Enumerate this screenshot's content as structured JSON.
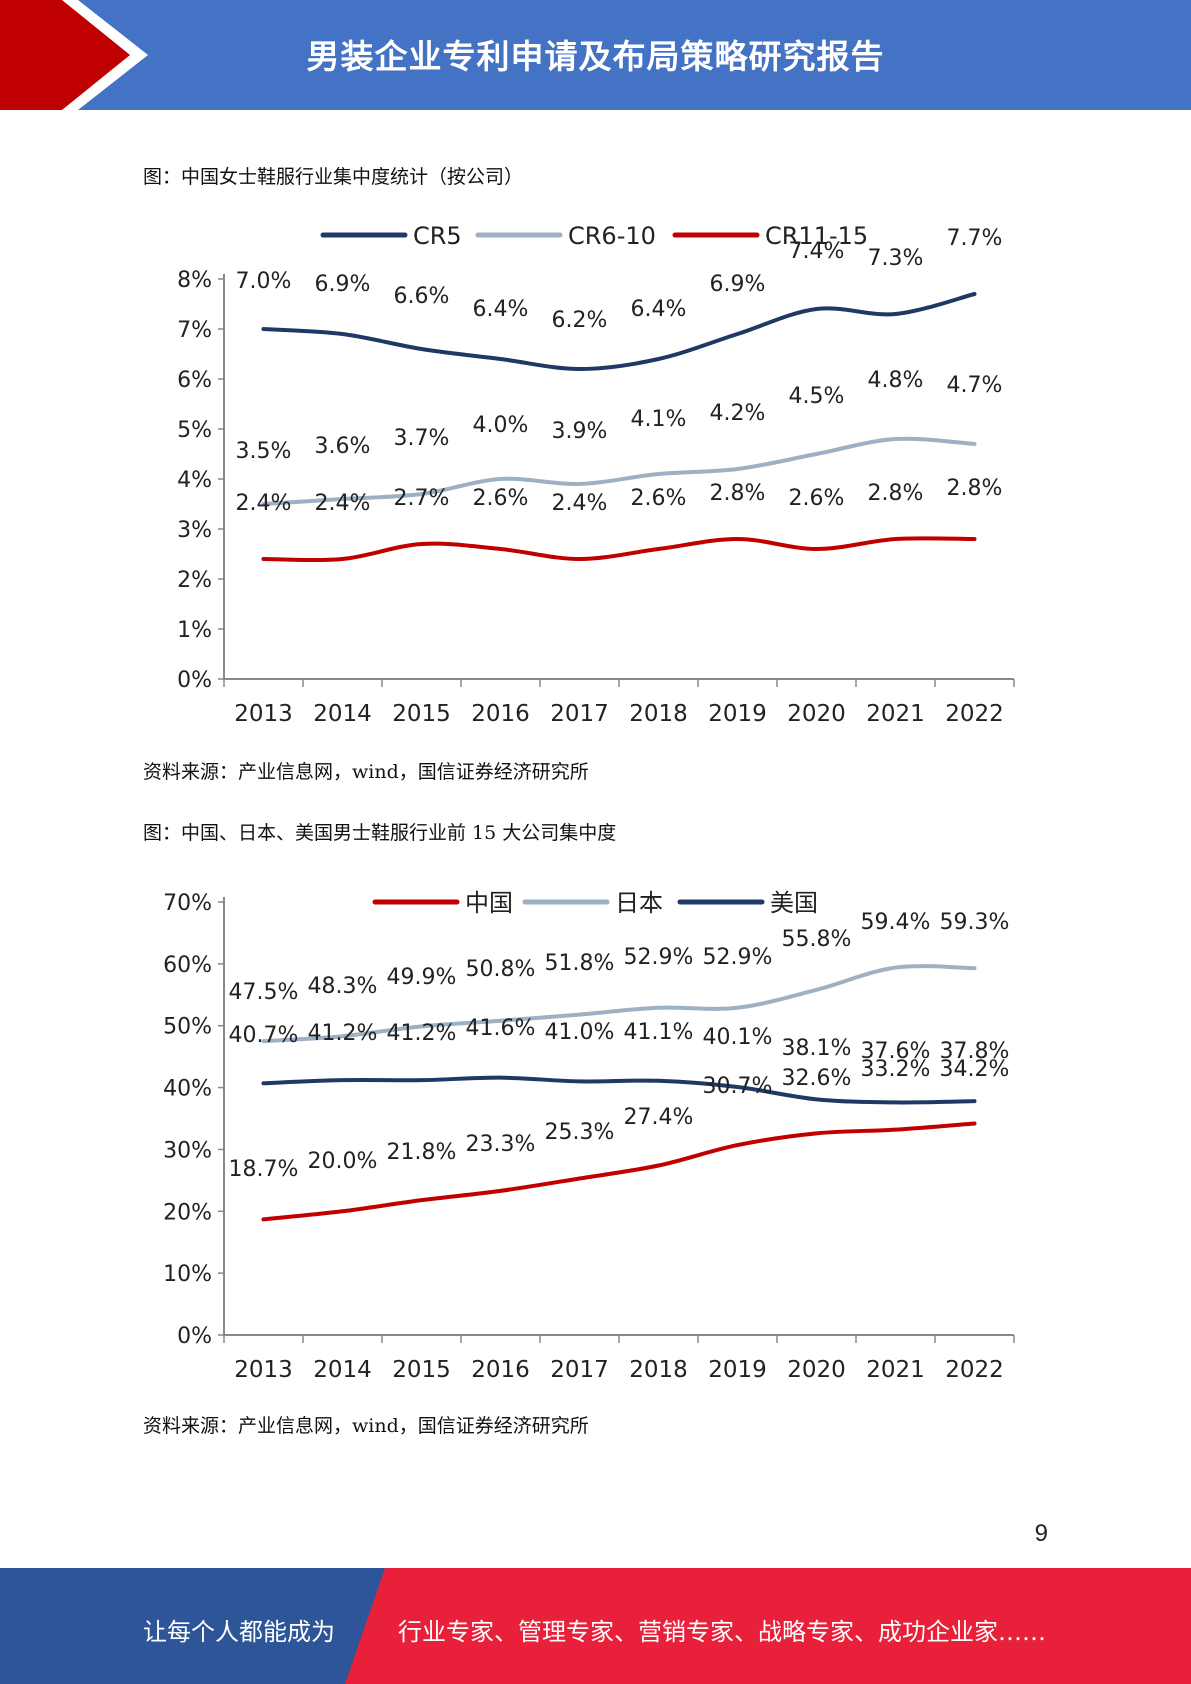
{
  "header": {
    "title": "男装企业专利申请及布局策略研究报告"
  },
  "figure1": {
    "caption": "图：中国女士鞋服行业集中度统计（按公司）",
    "source": "资料来源：产业信息网，wind，国信证券经济研究所"
  },
  "figure2": {
    "caption": "图：中国、日本、美国男士鞋服行业前 15 大公司集中度",
    "source": "资料来源：产业信息网，wind，国信证券经济研究所"
  },
  "chart_data": [
    {
      "type": "line",
      "x": [
        "2013",
        "2014",
        "2015",
        "2016",
        "2017",
        "2018",
        "2019",
        "2020",
        "2021",
        "2022"
      ],
      "ylim": [
        0,
        8
      ],
      "yticks": [
        "0%",
        "1%",
        "2%",
        "3%",
        "4%",
        "5%",
        "6%",
        "7%",
        "8%"
      ],
      "legend_position": "top",
      "grid": false,
      "series": [
        {
          "name": "CR5",
          "color": "#1f3864",
          "values": [
            7.0,
            6.9,
            6.6,
            6.4,
            6.2,
            6.4,
            6.9,
            7.4,
            7.3,
            7.7
          ],
          "labels": [
            "7.0%",
            "6.9%",
            "6.6%",
            "6.4%",
            "6.2%",
            "6.4%",
            "6.9%",
            "7.4%",
            "7.3%",
            "7.7%"
          ]
        },
        {
          "name": "CR6-10",
          "color": "#9eb0c4",
          "values": [
            3.5,
            3.6,
            3.7,
            4.0,
            3.9,
            4.1,
            4.2,
            4.5,
            4.8,
            4.7
          ],
          "labels": [
            "3.5%",
            "3.6%",
            "3.7%",
            "4.0%",
            "3.9%",
            "4.1%",
            "4.2%",
            "4.5%",
            "4.8%",
            "4.7%"
          ]
        },
        {
          "name": "CR11-15",
          "color": "#c00000",
          "values": [
            2.4,
            2.4,
            2.7,
            2.6,
            2.4,
            2.6,
            2.8,
            2.6,
            2.8,
            2.8
          ],
          "labels": [
            "2.4%",
            "2.4%",
            "2.7%",
            "2.6%",
            "2.4%",
            "2.6%",
            "2.8%",
            "2.6%",
            "2.8%",
            "2.8%"
          ]
        }
      ]
    },
    {
      "type": "line",
      "x": [
        "2013",
        "2014",
        "2015",
        "2016",
        "2017",
        "2018",
        "2019",
        "2020",
        "2021",
        "2022"
      ],
      "ylim": [
        0,
        70
      ],
      "yticks": [
        "0%",
        "10%",
        "20%",
        "30%",
        "40%",
        "50%",
        "60%",
        "70%"
      ],
      "legend_position": "top",
      "grid": false,
      "series": [
        {
          "name": "中国",
          "color": "#c00000",
          "values": [
            18.7,
            20.0,
            21.8,
            23.3,
            25.3,
            27.4,
            30.7,
            32.6,
            33.2,
            34.2
          ],
          "labels": [
            "18.7%",
            "20.0%",
            "21.8%",
            "23.3%",
            "25.3%",
            "27.4%",
            "30.7%",
            "32.6%",
            "33.2%",
            "34.2%"
          ]
        },
        {
          "name": "日本",
          "color": "#9eb0c4",
          "values": [
            47.5,
            48.3,
            49.9,
            50.8,
            51.8,
            52.9,
            52.9,
            55.8,
            59.4,
            59.3
          ],
          "labels": [
            "47.5%",
            "48.3%",
            "49.9%",
            "50.8%",
            "51.8%",
            "52.9%",
            "52.9%",
            "55.8%",
            "59.4%",
            "59.3%"
          ]
        },
        {
          "name": "美国",
          "color": "#1f3864",
          "values": [
            40.7,
            41.2,
            41.2,
            41.6,
            41.0,
            41.1,
            40.1,
            38.1,
            37.6,
            37.8
          ],
          "labels": [
            "40.7%",
            "41.2%",
            "41.2%",
            "41.6%",
            "41.0%",
            "41.1%",
            "40.1%",
            "38.1%",
            "37.6%",
            "37.8%"
          ]
        }
      ]
    }
  ],
  "page_number": "9",
  "footer": {
    "left_text": "让每个人都能成为",
    "right_text": "行业专家、管理专家、营销专家、战略专家、成功企业家……",
    "left_color": "#2e5597",
    "right_color": "#e8203a"
  }
}
